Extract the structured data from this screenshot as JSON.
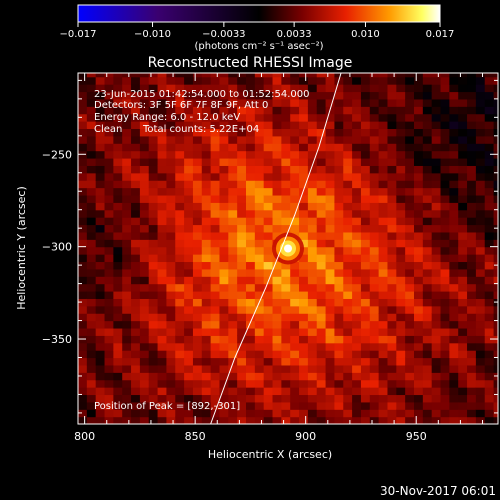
{
  "chart_data": {
    "type": "heatmap",
    "title": "Reconstructed RHESSI Image",
    "xlabel": "Heliocentric X (arcsec)",
    "ylabel": "Heliocentric Y (arcsec)",
    "xlim": [
      797,
      987
    ],
    "ylim": [
      -396,
      -206
    ],
    "x_ticks": [
      800,
      850,
      900,
      950
    ],
    "y_ticks": [
      -250,
      -300,
      -350
    ],
    "x_tick_labels": [
      "800",
      "850",
      "900",
      "950"
    ],
    "y_tick_labels": [
      "−250",
      "−300",
      "−350"
    ],
    "colorbar": {
      "range": [
        -0.017,
        0.017
      ],
      "ticks": [
        -0.017,
        -0.01,
        -0.0033,
        0.0033,
        0.01,
        0.017
      ],
      "tick_labels": [
        "−0.017",
        "−0.010",
        "−0.0033",
        "0.0033",
        "0.010",
        "0.017"
      ],
      "unit_label": "(photons cm⁻² s⁻¹ asec⁻²)",
      "colors": [
        "#0000ff",
        "#3a0070",
        "#000000",
        "#7a0000",
        "#e82000",
        "#ff9a00",
        "#ffff60",
        "#ffffff"
      ]
    },
    "peak": {
      "x": 892,
      "y": -301,
      "value": 0.017
    },
    "limb": [
      {
        "x": 857,
        "y": -396
      },
      {
        "x": 868,
        "y": -360
      },
      {
        "x": 882,
        "y": -322
      },
      {
        "x": 895,
        "y": -283
      },
      {
        "x": 906,
        "y": -246
      },
      {
        "x": 916,
        "y": -206
      }
    ]
  },
  "annotations": {
    "line1": "23-Jun-2015 01:42:54.000 to 01:52:54.000",
    "line2": "Detectors: 3F 5F 6F 7F 8F 9F, Att 0",
    "line3": "Energy Range: 6.0 - 12.0 keV",
    "line4_a": "Clean",
    "line4_b": "Total counts: 5.22E+04",
    "peak_label": "Position of Peak = [892,-301]"
  },
  "timestamp": "30-Nov-2017 06:01"
}
